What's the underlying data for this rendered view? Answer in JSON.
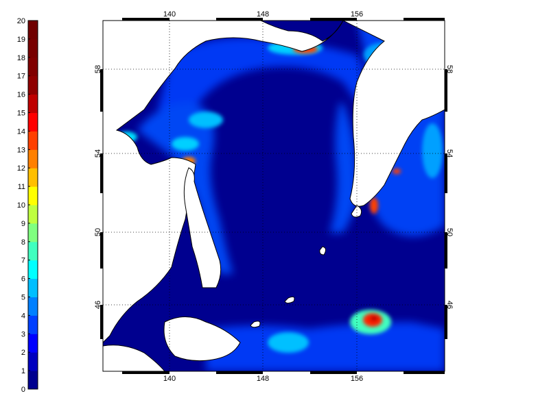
{
  "colorbar": {
    "min": 0,
    "max": 20,
    "labels": [
      "0",
      "1",
      "2",
      "3",
      "4",
      "5",
      "6",
      "7",
      "8",
      "9",
      "10",
      "11",
      "12",
      "13",
      "14",
      "15",
      "16",
      "17",
      "18",
      "19",
      "20"
    ],
    "colors": [
      "#00008f",
      "#0000bf",
      "#0000ff",
      "#0040ff",
      "#0080ff",
      "#00bfff",
      "#00ffff",
      "#40ffbf",
      "#80ff80",
      "#bfff40",
      "#ffff00",
      "#ffbf00",
      "#ff8000",
      "#ff4000",
      "#ff0000",
      "#bf0000",
      "#8f0000",
      "#800000",
      "#780000",
      "#700000"
    ]
  },
  "map": {
    "lon_labels": [
      "140",
      "148",
      "156"
    ],
    "lat_labels": [
      "46",
      "50",
      "54",
      "58"
    ],
    "ocean_base": "#00008f",
    "land_color": "#ffffff",
    "grid_style": "dotted"
  }
}
